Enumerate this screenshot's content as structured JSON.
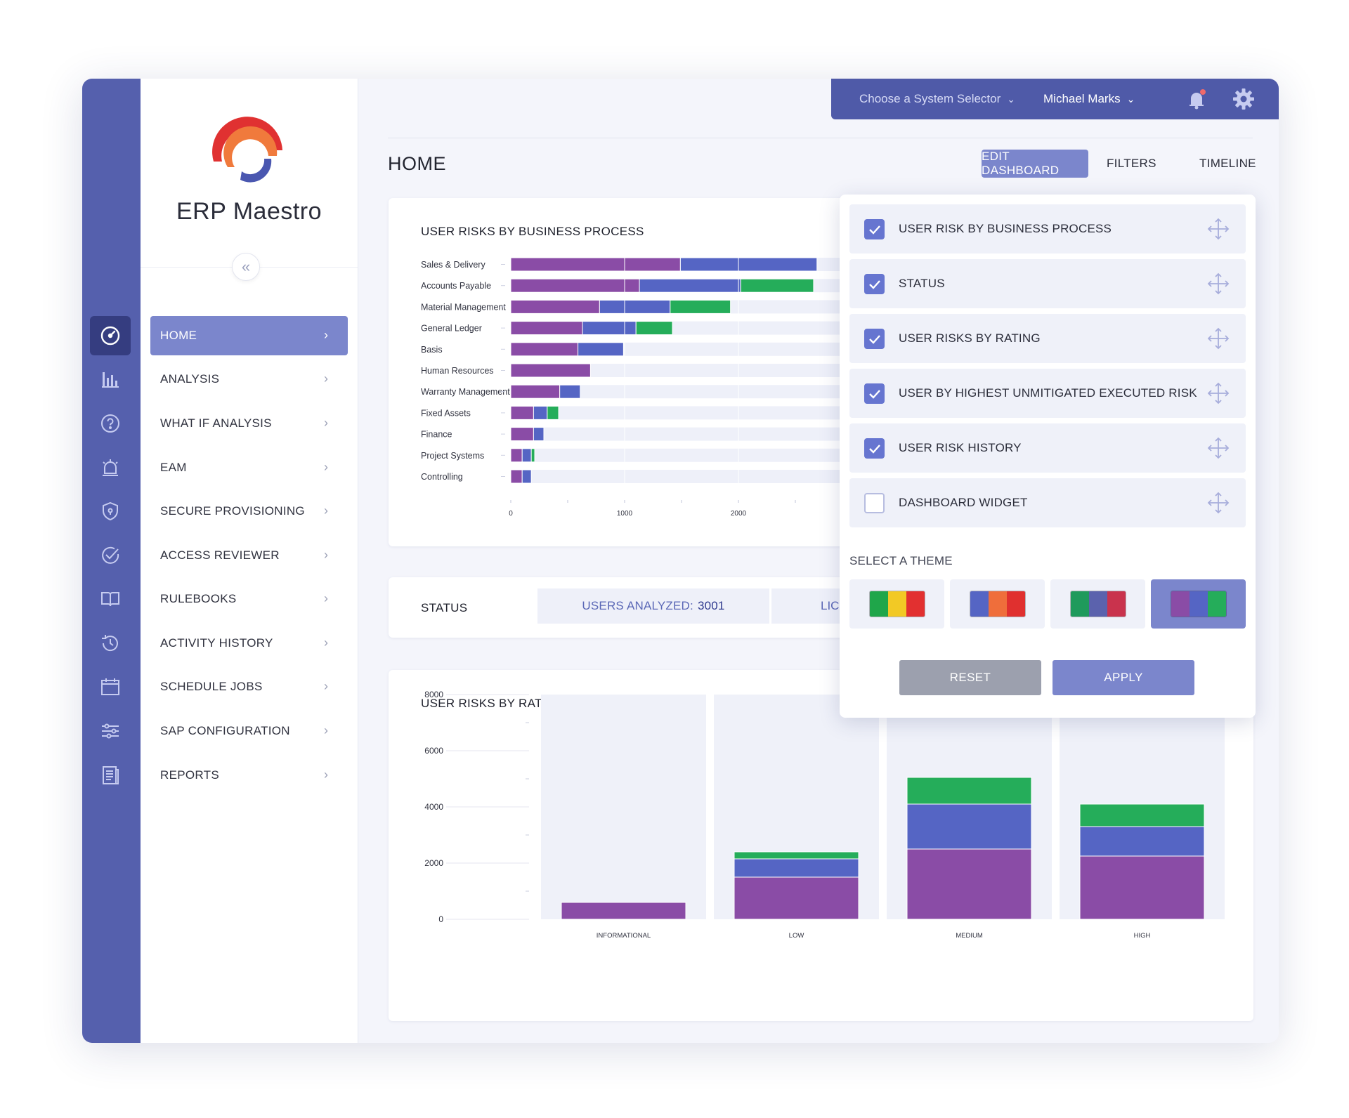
{
  "brand": {
    "name": "ERP Maestro"
  },
  "topbar": {
    "system_selector": "Choose a System Selector",
    "user": "Michael Marks"
  },
  "rail": {
    "icons": [
      "dashboard-icon",
      "bar-chart-icon",
      "help-icon",
      "alarm-icon",
      "shield-icon",
      "check-circle-icon",
      "book-icon",
      "history-icon",
      "calendar-icon",
      "sliders-icon",
      "document-icon"
    ]
  },
  "sidebar": {
    "items": [
      {
        "label": "HOME",
        "active": true
      },
      {
        "label": "ANALYSIS"
      },
      {
        "label": "WHAT IF ANALYSIS"
      },
      {
        "label": "EAM"
      },
      {
        "label": "SECURE PROVISIONING"
      },
      {
        "label": "ACCESS REVIEWER"
      },
      {
        "label": "RULEBOOKS"
      },
      {
        "label": "ACTIVITY HISTORY"
      },
      {
        "label": "SCHEDULE JOBS"
      },
      {
        "label": "SAP CONFIGURATION"
      },
      {
        "label": "REPORTS"
      }
    ]
  },
  "page": {
    "title": "HOME",
    "edit_dashboard": "EDIT DASHBOARD",
    "filters": "FILTERS",
    "timeline": "TIMELINE"
  },
  "cards": {
    "business_process": {
      "title": "USER RISKS BY BUSINESS PROCESS"
    },
    "status": {
      "title": "STATUS",
      "users_analyzed_label": "USERS ANALYZED:",
      "users_analyzed_value": "3001",
      "partial_label": "LICE"
    },
    "rating": {
      "title": "USER RISKS BY RATING"
    }
  },
  "colors": {
    "purple": "#8a4ca6",
    "blue": "#5565c4",
    "green": "#25ad5a",
    "accent": "#7b86cc",
    "rail": "#5560ad",
    "topbar": "#4f5aa8"
  },
  "chart_data": [
    {
      "type": "bar",
      "orientation": "horizontal",
      "title": "USER RISKS BY BUSINESS PROCESS",
      "categories": [
        "Sales & Delivery",
        "Accounts Payable",
        "Material Management",
        "General Ledger",
        "Basis",
        "Human Resources",
        "Warranty Management",
        "Fixed Assets",
        "Finance",
        "Project Systems",
        "Controlling"
      ],
      "series": [
        {
          "values": [
            1490,
            1130,
            780,
            630,
            590,
            700,
            430,
            200,
            200,
            100,
            100
          ]
        },
        {
          "values": [
            1200,
            890,
            620,
            470,
            400,
            0,
            180,
            120,
            90,
            80,
            80
          ]
        },
        {
          "values": [
            0,
            640,
            530,
            320,
            0,
            0,
            0,
            100,
            0,
            30,
            0
          ]
        }
      ],
      "xlim": [
        0,
        2600
      ],
      "xticks": [
        0,
        1000,
        2000
      ]
    },
    {
      "type": "bar",
      "stacked": true,
      "title": "USER RISKS BY RATING",
      "categories": [
        "INFORMATIONAL",
        "LOW",
        "MEDIUM",
        "HIGH"
      ],
      "series": [
        {
          "values": [
            600,
            1500,
            2500,
            2250
          ]
        },
        {
          "values": [
            0,
            650,
            1600,
            1050
          ]
        },
        {
          "values": [
            0,
            250,
            950,
            800
          ]
        }
      ],
      "ylim": [
        0,
        8000
      ],
      "yticks": [
        0,
        2000,
        4000,
        6000,
        8000
      ]
    }
  ],
  "edit_panel": {
    "widgets": [
      {
        "label": "USER RISK BY BUSINESS PROCESS",
        "checked": true
      },
      {
        "label": "STATUS",
        "checked": true
      },
      {
        "label": "USER RISKS BY RATING",
        "checked": true
      },
      {
        "label": "USER BY HIGHEST UNMITIGATED EXECUTED RISK",
        "checked": true
      },
      {
        "label": "USER RISK HISTORY",
        "checked": true
      },
      {
        "label": "DASHBOARD WIDGET",
        "checked": false
      }
    ],
    "theme_label": "SELECT A THEME",
    "themes": [
      {
        "colors": [
          "#1fa64a",
          "#f2c925",
          "#e23030"
        ],
        "selected": false
      },
      {
        "colors": [
          "#5565c4",
          "#ef6e3b",
          "#e0302f"
        ],
        "selected": false
      },
      {
        "colors": [
          "#1f9a5c",
          "#5b62ad",
          "#c9334d"
        ],
        "selected": false
      },
      {
        "colors": [
          "#8a4ca6",
          "#5565c4",
          "#25ad5a"
        ],
        "selected": true
      }
    ],
    "reset": "RESET",
    "apply": "APPLY"
  }
}
